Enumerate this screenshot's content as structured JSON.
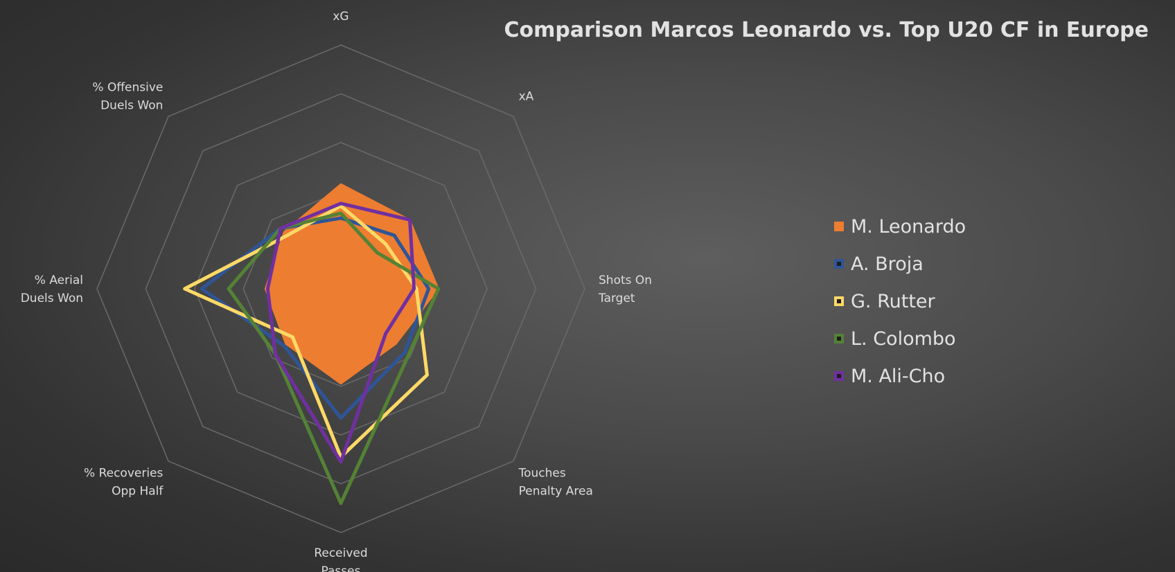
{
  "chart_data": {
    "type": "radar",
    "title": "Comparison Marcos Leonardo vs. Top U20 CF in Europe",
    "axes": [
      [
        "xG"
      ],
      [
        "xA"
      ],
      [
        "Shots On",
        "Target"
      ],
      [
        "Touches",
        "Penalty Area"
      ],
      [
        "Received",
        "Passes"
      ],
      [
        "% Recoveries",
        "Opp Half"
      ],
      [
        "% Aerial",
        "Duels Won"
      ],
      [
        "% Offensive",
        "Duels Won"
      ]
    ],
    "rmax": 5,
    "rings": 5,
    "legend_position": "right",
    "series": [
      {
        "name": "M. Leonardo",
        "color": "#ED7D31",
        "fill": true,
        "values": [
          2.15,
          2.0,
          2.0,
          1.6,
          1.95,
          1.6,
          1.55,
          1.65
        ]
      },
      {
        "name": "A. Broja",
        "color": "#2F5597",
        "fill": false,
        "values": [
          1.45,
          1.55,
          1.8,
          1.85,
          2.65,
          1.65,
          2.85,
          1.75
        ]
      },
      {
        "name": "G. Rutter",
        "color": "#FFD966",
        "fill": false,
        "values": [
          1.7,
          1.3,
          1.55,
          2.5,
          3.45,
          1.4,
          3.2,
          1.55
        ]
      },
      {
        "name": "L. Colombo",
        "color": "#548235",
        "fill": false,
        "values": [
          1.55,
          1.05,
          2.0,
          1.95,
          4.4,
          1.9,
          2.3,
          1.75
        ]
      },
      {
        "name": "M. Ali-Cho",
        "color": "#7030A0",
        "fill": false,
        "values": [
          1.75,
          2.0,
          1.5,
          1.3,
          3.55,
          1.9,
          1.5,
          1.75
        ]
      }
    ]
  }
}
